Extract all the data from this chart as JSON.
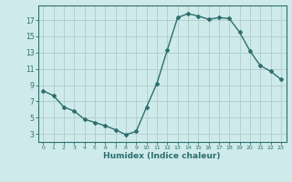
{
  "x": [
    0,
    1,
    2,
    3,
    4,
    5,
    6,
    7,
    8,
    9,
    10,
    11,
    12,
    13,
    14,
    15,
    16,
    17,
    18,
    19,
    20,
    21,
    22,
    23
  ],
  "y": [
    8.3,
    7.7,
    6.3,
    5.8,
    4.8,
    4.4,
    4.0,
    3.5,
    2.9,
    3.3,
    6.3,
    9.2,
    13.3,
    17.3,
    17.8,
    17.5,
    17.1,
    17.3,
    17.2,
    15.5,
    13.2,
    11.4,
    10.7,
    9.7
  ],
  "xlabel": "Humidex (Indice chaleur)",
  "line_color": "#2e6e6e",
  "marker": "D",
  "marker_size": 2,
  "bg_color": "#ceeaea",
  "grid_color": "#b0cccc",
  "yticks": [
    3,
    5,
    7,
    9,
    11,
    13,
    15,
    17
  ],
  "xticks": [
    0,
    1,
    2,
    3,
    4,
    5,
    6,
    7,
    8,
    9,
    10,
    11,
    12,
    13,
    14,
    15,
    16,
    17,
    18,
    19,
    20,
    21,
    22,
    23
  ],
  "xlim": [
    -0.5,
    23.5
  ],
  "ylim": [
    2.0,
    18.8
  ]
}
